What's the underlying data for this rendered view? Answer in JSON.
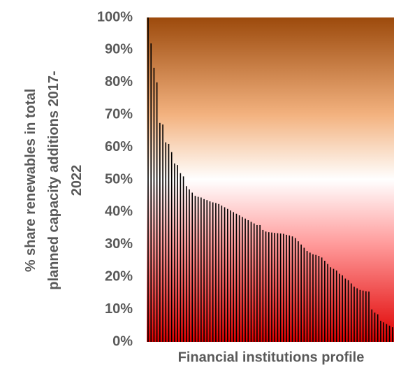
{
  "chart_data": {
    "type": "bar",
    "xlabel": "Financial institutions profile",
    "ylabel": [
      "% share renewables in total",
      "planned capacity additions 2017-",
      "2022"
    ],
    "categories": [
      null,
      null,
      null,
      null,
      null,
      null,
      null,
      null,
      null,
      null,
      null,
      null,
      null,
      null,
      null,
      null,
      null,
      null,
      null,
      null,
      null,
      null,
      null,
      null,
      null,
      null,
      null,
      null,
      null,
      null,
      null,
      null,
      null,
      null,
      null,
      null,
      null,
      null,
      null,
      null,
      null,
      null,
      null,
      null,
      null,
      null,
      null,
      null,
      null,
      null,
      null,
      null,
      null,
      null,
      null,
      null,
      null,
      null,
      null,
      null,
      null,
      null,
      null,
      null,
      null,
      null,
      null,
      null,
      null,
      null,
      null,
      null,
      null,
      null,
      null,
      null,
      null,
      null,
      null,
      null,
      null,
      null,
      null,
      null
    ],
    "values": [
      100,
      92,
      84.5,
      80,
      67.5,
      67,
      61.5,
      61,
      58.5,
      55,
      54.5,
      52,
      51,
      48,
      47,
      46,
      45,
      44.7,
      44.5,
      44,
      43.7,
      43.3,
      43,
      42.8,
      42.5,
      42,
      41.5,
      41,
      40.5,
      40,
      39.5,
      39,
      38.5,
      38,
      37.5,
      37,
      36.5,
      36,
      36,
      34.5,
      34,
      33.8,
      33.7,
      33.6,
      33.5,
      33.4,
      33.3,
      33,
      32.8,
      32.5,
      32,
      31,
      30,
      29,
      28,
      27.5,
      27,
      26.8,
      26.5,
      26,
      25,
      24,
      23,
      22.5,
      22,
      21,
      20.5,
      19.5,
      19,
      18,
      17,
      16.5,
      16,
      15.8,
      15.6,
      15.5,
      10,
      9,
      8.5,
      6.5,
      6,
      5.5,
      5,
      4.5
    ],
    "color": "#000000",
    "ylim": [
      0,
      100
    ],
    "yticks": [
      {
        "value": 0,
        "label": "0%"
      },
      {
        "value": 10,
        "label": "10%"
      },
      {
        "value": 20,
        "label": "20%"
      },
      {
        "value": 30,
        "label": "30%"
      },
      {
        "value": 40,
        "label": "40%"
      },
      {
        "value": 50,
        "label": "50%"
      },
      {
        "value": 60,
        "label": "60%"
      },
      {
        "value": 70,
        "label": "70%"
      },
      {
        "value": 80,
        "label": "80%"
      },
      {
        "value": 90,
        "label": "90%"
      },
      {
        "value": 100,
        "label": "100%"
      }
    ],
    "grid": false
  }
}
